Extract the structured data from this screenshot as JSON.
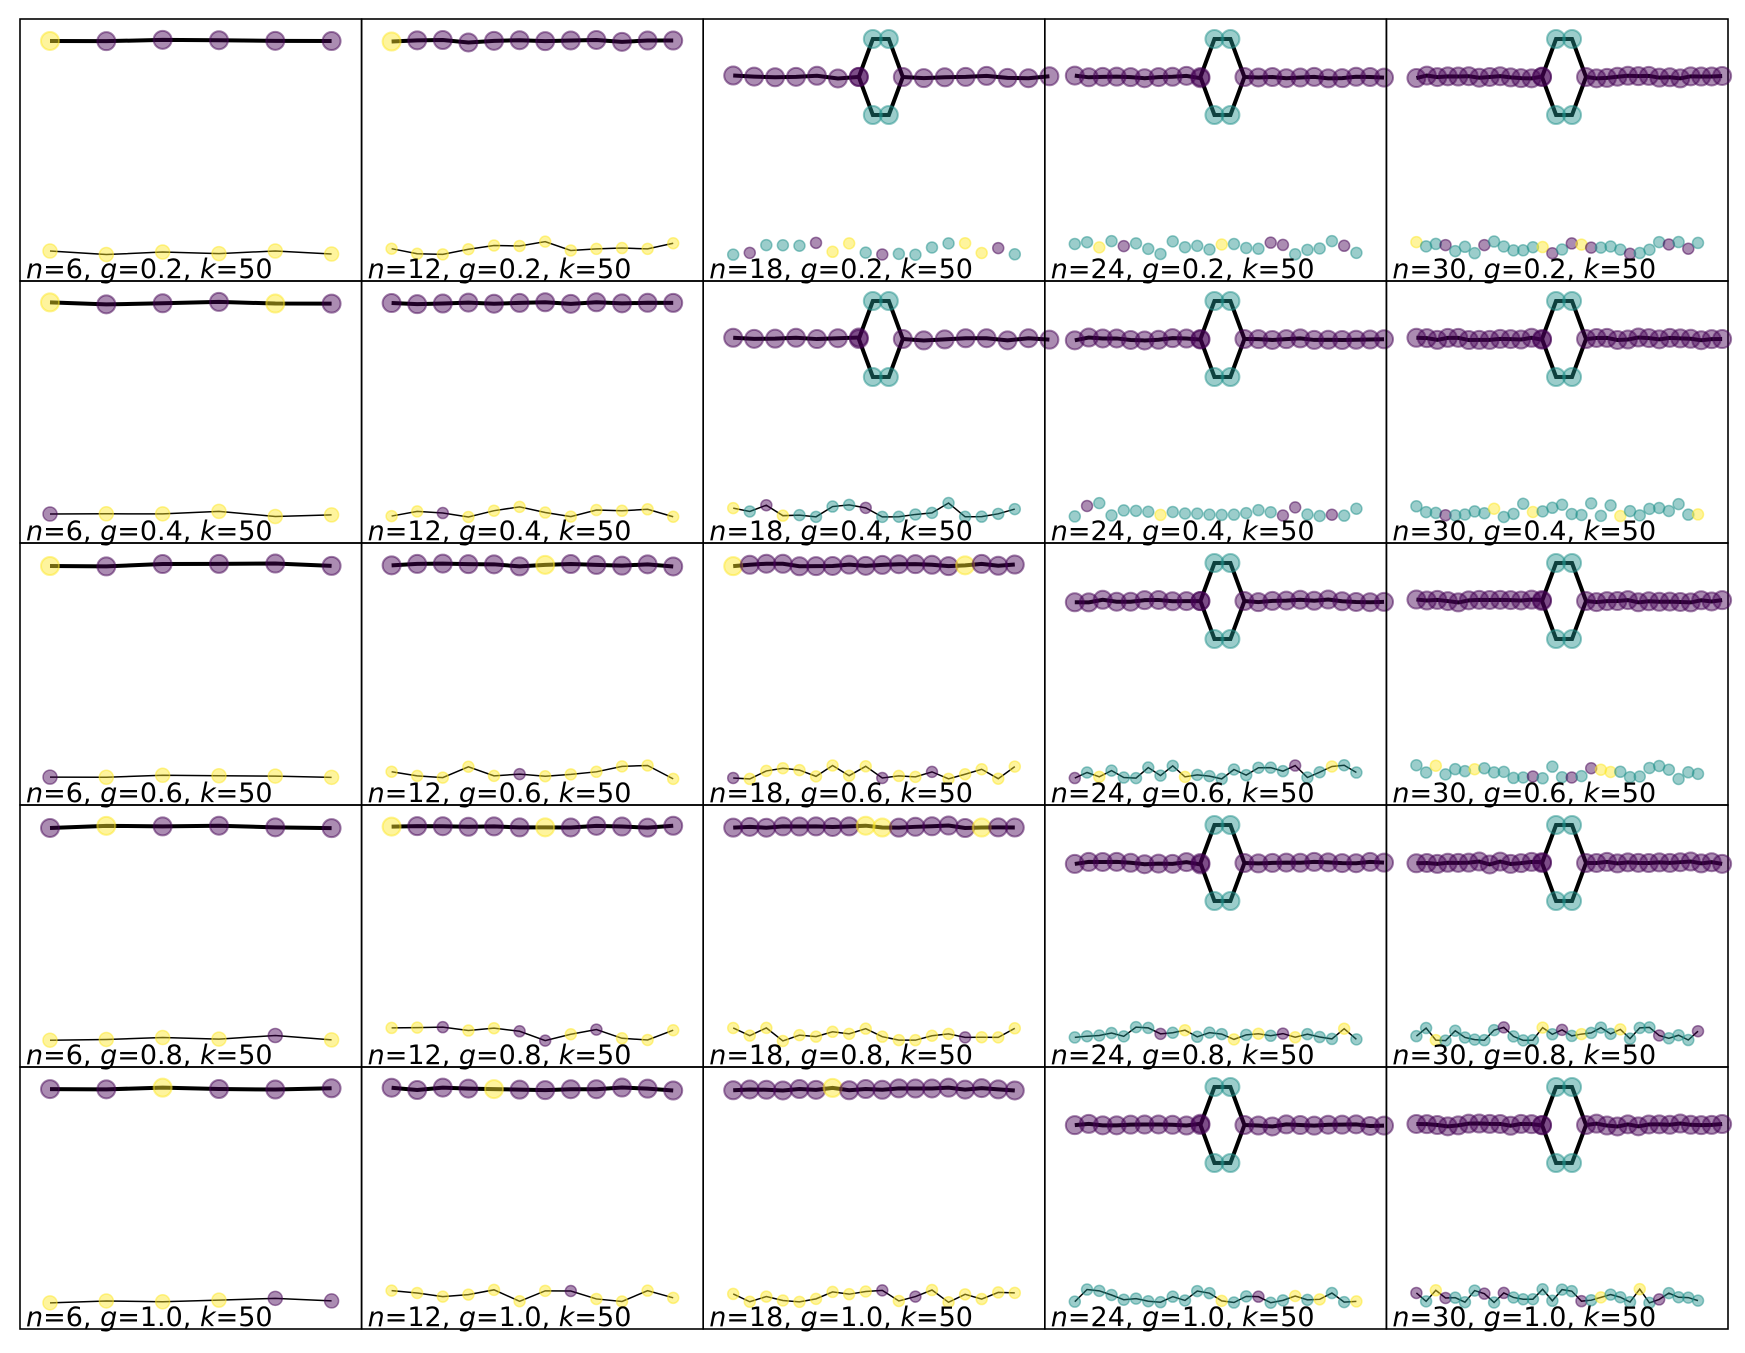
{
  "figure": {
    "columns": [
      6,
      12,
      18,
      24,
      30
    ],
    "rows": [
      "0.2",
      "0.4",
      "0.6",
      "0.8",
      "1.0"
    ],
    "k": "50",
    "colors": {
      "purple": "#440154",
      "teal": "#21918c",
      "yellow": "#fde725",
      "edge": "#000000",
      "frame": "#000000"
    },
    "label_symbols": {
      "n": "n",
      "g": "g",
      "k": "k"
    },
    "panels": [
      {
        "n": "6",
        "g": "0.2",
        "k": "50",
        "top": "chain",
        "bottom": "chain",
        "label": "n=6, g=0.2, k=50"
      },
      {
        "n": "12",
        "g": "0.2",
        "k": "50",
        "top": "chain",
        "bottom": "scattered-chain",
        "label": "n=12, g=0.2, k=50"
      },
      {
        "n": "18",
        "g": "0.2",
        "k": "50",
        "top": "chain-with-loop",
        "bottom": "scattered-points",
        "label": "n=18, g=0.2, k=50"
      },
      {
        "n": "24",
        "g": "0.2",
        "k": "50",
        "top": "chain-with-loop",
        "bottom": "scattered-points",
        "label": "n=24, g=0.2, k=50"
      },
      {
        "n": "30",
        "g": "0.2",
        "k": "50",
        "top": "chain-with-loop",
        "bottom": "scattered-points",
        "label": "n=30, g=0.2, k=50"
      },
      {
        "n": "6",
        "g": "0.4",
        "k": "50",
        "top": "chain",
        "bottom": "chain",
        "label": "n=6, g=0.4, k=50"
      },
      {
        "n": "12",
        "g": "0.4",
        "k": "50",
        "top": "chain",
        "bottom": "scattered-chain",
        "label": "n=12, g=0.4, k=50"
      },
      {
        "n": "18",
        "g": "0.4",
        "k": "50",
        "top": "chain-with-loop",
        "bottom": "scattered-chain",
        "label": "n=18, g=0.4, k=50"
      },
      {
        "n": "24",
        "g": "0.4",
        "k": "50",
        "top": "chain-with-loop",
        "bottom": "scattered-points",
        "label": "n=24, g=0.4, k=50"
      },
      {
        "n": "30",
        "g": "0.4",
        "k": "50",
        "top": "chain-with-loop",
        "bottom": "scattered-points",
        "label": "n=30, g=0.4, k=50"
      },
      {
        "n": "6",
        "g": "0.6",
        "k": "50",
        "top": "chain",
        "bottom": "chain",
        "label": "n=6, g=0.6, k=50"
      },
      {
        "n": "12",
        "g": "0.6",
        "k": "50",
        "top": "chain",
        "bottom": "scattered-chain",
        "label": "n=12, g=0.6, k=50"
      },
      {
        "n": "18",
        "g": "0.6",
        "k": "50",
        "top": "chain",
        "bottom": "chain",
        "label": "n=18, g=0.6, k=50"
      },
      {
        "n": "24",
        "g": "0.6",
        "k": "50",
        "top": "chain-with-loop",
        "bottom": "scattered-chain",
        "label": "n=24, g=0.6, k=50"
      },
      {
        "n": "30",
        "g": "0.6",
        "k": "50",
        "top": "chain-with-loop",
        "bottom": "scattered-points",
        "label": "n=30, g=0.6, k=50"
      },
      {
        "n": "6",
        "g": "0.8",
        "k": "50",
        "top": "chain",
        "bottom": "chain",
        "label": "n=6, g=0.8, k=50"
      },
      {
        "n": "12",
        "g": "0.8",
        "k": "50",
        "top": "chain",
        "bottom": "chain",
        "label": "n=12, g=0.8, k=50"
      },
      {
        "n": "18",
        "g": "0.8",
        "k": "50",
        "top": "chain",
        "bottom": "chain",
        "label": "n=18, g=0.8, k=50"
      },
      {
        "n": "24",
        "g": "0.8",
        "k": "50",
        "top": "chain-with-loop",
        "bottom": "scattered-chain",
        "label": "n=24, g=0.8, k=50"
      },
      {
        "n": "30",
        "g": "0.8",
        "k": "50",
        "top": "chain-with-loop",
        "bottom": "scattered-chain",
        "label": "n=30, g=0.8, k=50"
      },
      {
        "n": "6",
        "g": "1.0",
        "k": "50",
        "top": "chain",
        "bottom": "chain",
        "label": "n=6, g=1.0, k=50"
      },
      {
        "n": "12",
        "g": "1.0",
        "k": "50",
        "top": "chain",
        "bottom": "chain",
        "label": "n=12, g=1.0, k=50"
      },
      {
        "n": "18",
        "g": "1.0",
        "k": "50",
        "top": "chain",
        "bottom": "chain",
        "label": "n=18, g=1.0, k=50"
      },
      {
        "n": "24",
        "g": "1.0",
        "k": "50",
        "top": "chain-with-loop",
        "bottom": "chain",
        "label": "n=24, g=1.0, k=50"
      },
      {
        "n": "30",
        "g": "1.0",
        "k": "50",
        "top": "chain-with-loop",
        "bottom": "chain",
        "label": "n=30, g=1.0, k=50"
      }
    ]
  }
}
